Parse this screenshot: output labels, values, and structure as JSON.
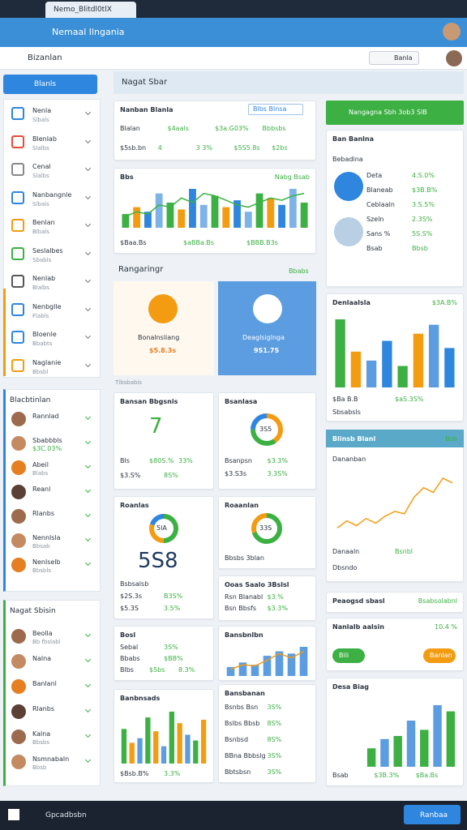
{
  "browser": {
    "tab": "Nemo_Blitdl0tlX",
    "address": "Nemaal Ilngania"
  },
  "app": {
    "title": "Bizanlan",
    "action": "Banla"
  },
  "sidebar": {
    "search": "Blanls",
    "items": [
      {
        "label": "Nenla",
        "sub": "Slbals"
      },
      {
        "label": "Blenlab",
        "sub": "Slalbs"
      },
      {
        "label": "Cenal",
        "sub": "Slalbs"
      },
      {
        "label": "Nanbangnle",
        "sub": "Slbals"
      },
      {
        "label": "Benlan",
        "sub": "Blbals"
      },
      {
        "label": "Seslalbes",
        "sub": "Sbabls"
      },
      {
        "label": "Nenlab",
        "sub": "Blalbs"
      },
      {
        "label": "Nenbglle",
        "sub": "Flabls"
      },
      {
        "label": "Bloenle",
        "sub": "Bbabts"
      },
      {
        "label": "Naglanie",
        "sub": "Bbsbl"
      }
    ]
  },
  "people": {
    "title": "Blacbtinlan",
    "items": [
      {
        "name": "Rannlad"
      },
      {
        "name": "Sbabbbls",
        "value": "$3C.03%"
      },
      {
        "name": "Abeil",
        "sub": "Blabs"
      },
      {
        "name": "Reanl"
      },
      {
        "name": "Rlanbs"
      },
      {
        "name": "Nennlsla",
        "sub": "Bbsab"
      },
      {
        "name": "Nenlselb",
        "sub": "Bbsbls"
      }
    ]
  },
  "contacts": {
    "title": "Nagat Sbisin",
    "items": [
      {
        "name": "Beolla",
        "sub": "Bb fbslabl"
      },
      {
        "name": "Nalna"
      },
      {
        "name": "Banlanl"
      },
      {
        "name": "Rlanbs"
      },
      {
        "name": "Kalna",
        "sub": "Bbsbs"
      },
      {
        "name": "Nsmnabaln",
        "sub": "Bbsb"
      }
    ]
  },
  "main": {
    "title": "Nagat Sbar",
    "section": "Rangaringr",
    "link": "Bbabs",
    "label": "Tlbsbabis",
    "tiles": [
      {
        "title": "Bonalnsliang",
        "value": "$5.8.3s"
      },
      {
        "title": "Deaglsiglnga",
        "value": "9S1.7S"
      }
    ]
  },
  "right_button": "Nangagna Sbh 3ob3 SlB",
  "cards": [
    {
      "title": "Nanban Blanla",
      "button": "Blbs Blnsa",
      "lines": [
        [
          "Blalan",
          "$4aals",
          "$3a.G03%",
          "Bbbsbs"
        ],
        [
          "$5sb.bn",
          "4",
          "3 3%",
          "$5S5.8s",
          "$2bs"
        ]
      ]
    },
    {
      "title": "Bbs",
      "tag": "Nabg Bsab",
      "bars": [
        12,
        18,
        14,
        30,
        22,
        16,
        34,
        20,
        28,
        18,
        24,
        14,
        30,
        26,
        20,
        34,
        22
      ],
      "colors": [
        "#3cb043",
        "#f39c12",
        "#2e86de",
        "#7fb3e8"
      ],
      "line": [
        10,
        14,
        12,
        20,
        18,
        26,
        22,
        30,
        28,
        24,
        20,
        18,
        22,
        26,
        24,
        28,
        30
      ],
      "line_color": "#3cb043",
      "lines": [
        [
          "$Baa.Bs",
          "$aBBa.Bs",
          "$BBB.B3s"
        ]
      ]
    },
    {
      "title": "Bansan Bbgsnis",
      "big": "7",
      "lines": [
        [
          "Bls",
          "$80S.%",
          "33%"
        ],
        [
          "$3.S%",
          "8S%"
        ]
      ]
    },
    {
      "title": "Bsanlasa",
      "donut": [
        40,
        35,
        25
      ],
      "donut_colors": [
        "#f39c12",
        "#3cb043",
        "#2e86de"
      ],
      "center": "3S5",
      "lines": [
        [
          "Bsanpsn",
          "$3.3%"
        ],
        [
          "$3.S3s",
          "3.3S%"
        ]
      ]
    },
    {
      "title": "Roanlas",
      "donut": [
        50,
        30,
        20
      ],
      "donut_colors": [
        "#3cb043",
        "#f39c12",
        "#2e86de"
      ],
      "center": "5lA",
      "big": "5S8",
      "lines": [
        [
          "Bsbsalsb"
        ],
        [
          "$2S.3s",
          "B3S%"
        ],
        [
          "$5.3S",
          "3.5%"
        ]
      ]
    },
    {
      "title": "Roaanlan",
      "donut": [
        70,
        30
      ],
      "donut_colors": [
        "#3cb043",
        "#f39c12"
      ],
      "center": "33S",
      "lines": [
        [
          "Bbsbs 3blan"
        ]
      ]
    },
    {
      "title": "Ooas Saalo 3Bslsl",
      "lines": [
        [
          "Rsn Blanabl",
          "$3.%"
        ],
        [
          "Bsn Bbsfs",
          "$3.3%"
        ]
      ]
    },
    {
      "title": "Bosl",
      "lines": [
        [
          "Sebal",
          "3S%"
        ],
        [
          "Bbabs",
          "$BB%"
        ],
        [
          "Blbs",
          "$5bs",
          "8.3%"
        ]
      ]
    },
    {
      "title": "Bansbnlbn",
      "bars": [
        8,
        12,
        10,
        18,
        22,
        20,
        26
      ],
      "colors": [
        "#5b9de0"
      ],
      "line": [
        6,
        10,
        9,
        14,
        20,
        16,
        22
      ],
      "line_color": "#f39c12"
    },
    {
      "title": "Banbnsads",
      "bars": [
        30,
        18,
        22,
        40,
        28,
        15,
        45,
        35,
        25,
        20,
        38
      ],
      "colors": [
        "#3cb043",
        "#f39c12",
        "#5b9de0"
      ],
      "lines": [
        [
          "$Bsb.B%",
          "3.3%"
        ]
      ]
    },
    {
      "title": "Bansbanan",
      "lines": [
        [
          "Bsnbs Bsn",
          "3S%"
        ],
        [
          "Bslbs Bbsb",
          "8S%"
        ],
        [
          "Bsnbsd",
          "8S%"
        ],
        [
          "BBna Bbbslg",
          "3S%"
        ],
        [
          "Bbtsbsn",
          "3S%"
        ]
      ]
    },
    {
      "title": "Ban Banlna",
      "sub": "Bebadina",
      "lines": [
        [
          "Deta",
          "4.S.0%"
        ],
        [
          "Blaneab",
          "$3B.B%"
        ],
        [
          "Ceblaaln",
          "3.S.5%"
        ],
        [
          "Szeln",
          "2.3S%"
        ],
        [
          "Sans %",
          "5S.S%"
        ],
        [
          "Bsab",
          "Bbsb"
        ]
      ]
    },
    {
      "title": "Denlaalsla",
      "tag": "$3A.B%",
      "bars": [
        38,
        20,
        15,
        26,
        12,
        30,
        35,
        22
      ],
      "colors": [
        "#3cb043",
        "#f39c12",
        "#5b9de0",
        "#2e86de"
      ],
      "lines": [
        [
          "$Ba B.B",
          "$aS.3S%"
        ],
        [
          "Sbsabsls"
        ]
      ]
    },
    {
      "title": "Blinsb Blanl",
      "tag": "Bsb",
      "sub": "Dananban",
      "line": [
        5,
        8,
        6,
        9,
        7,
        10,
        12,
        11,
        18,
        22,
        20,
        26,
        24
      ],
      "line_color": "#f39c12",
      "lines": [
        [
          "Danaaln",
          "Bsnbl"
        ],
        [
          "Dbsndo"
        ]
      ]
    },
    {
      "title": "Peaogsd sbasl",
      "tag": "Bsabsolabnl"
    },
    {
      "title": "Nanlalb aalsin",
      "tag": "10.4 %",
      "buttons": [
        "Bili",
        "Banlan"
      ]
    },
    {
      "title": "Desa Biag",
      "bars": [
        12,
        18,
        20,
        30,
        24,
        40,
        36
      ],
      "colors": [
        "#3cb043",
        "#5b9de0"
      ],
      "lines": [
        [
          "Bsab",
          "$3B.3%",
          "$Ba.Bs"
        ]
      ]
    }
  ],
  "taskbar": {
    "search": "Gpcadbsbn",
    "button": "Ranbaa"
  }
}
